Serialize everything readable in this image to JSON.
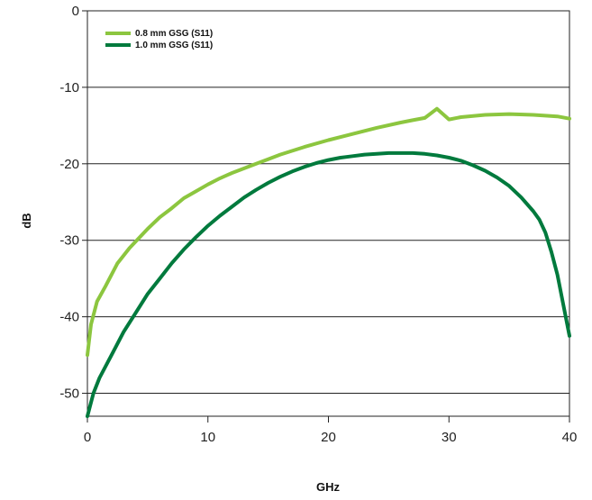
{
  "chart_data": {
    "type": "line",
    "title": "",
    "xlabel": "GHz",
    "ylabel": "dB",
    "xlim": [
      0,
      40
    ],
    "ylim": [
      -53,
      0
    ],
    "x_ticks": [
      "0",
      "10",
      "20",
      "30",
      "40"
    ],
    "y_ticks": [
      "0",
      "-10",
      "-20",
      "-30",
      "-40",
      "-50"
    ],
    "grid": "horizontal",
    "legend_position": "top-left",
    "series": [
      {
        "name": "0.8 mm GSG (S11)",
        "color": "#8cc63f",
        "points": [
          [
            0,
            -45
          ],
          [
            0.3,
            -41
          ],
          [
            0.8,
            -38
          ],
          [
            1.5,
            -36
          ],
          [
            2.5,
            -33
          ],
          [
            3.5,
            -31
          ],
          [
            5,
            -28.5
          ],
          [
            6,
            -27
          ],
          [
            7,
            -25.8
          ],
          [
            8,
            -24.5
          ],
          [
            9,
            -23.6
          ],
          [
            10,
            -22.7
          ],
          [
            11,
            -21.9
          ],
          [
            12,
            -21.2
          ],
          [
            13,
            -20.6
          ],
          [
            14,
            -20
          ],
          [
            15,
            -19.4
          ],
          [
            16,
            -18.8
          ],
          [
            18,
            -17.8
          ],
          [
            20,
            -16.9
          ],
          [
            22,
            -16.1
          ],
          [
            24,
            -15.3
          ],
          [
            26,
            -14.6
          ],
          [
            27,
            -14.3
          ],
          [
            28,
            -14
          ],
          [
            29,
            -12.8
          ],
          [
            30,
            -14.2
          ],
          [
            31,
            -13.9
          ],
          [
            33,
            -13.6
          ],
          [
            35,
            -13.5
          ],
          [
            37,
            -13.6
          ],
          [
            39,
            -13.8
          ],
          [
            40,
            -14.1
          ]
        ]
      },
      {
        "name": "1.0 mm GSG (S11)",
        "color": "#007a3d",
        "points": [
          [
            0,
            -53
          ],
          [
            0.5,
            -50
          ],
          [
            1,
            -48
          ],
          [
            2,
            -45
          ],
          [
            3,
            -42
          ],
          [
            4,
            -39.5
          ],
          [
            5,
            -37
          ],
          [
            6,
            -35
          ],
          [
            7,
            -33
          ],
          [
            8,
            -31.2
          ],
          [
            9,
            -29.6
          ],
          [
            10,
            -28.1
          ],
          [
            11,
            -26.8
          ],
          [
            12,
            -25.6
          ],
          [
            13,
            -24.4
          ],
          [
            14,
            -23.4
          ],
          [
            15,
            -22.5
          ],
          [
            16,
            -21.7
          ],
          [
            17,
            -21
          ],
          [
            18,
            -20.4
          ],
          [
            19,
            -19.9
          ],
          [
            20,
            -19.5
          ],
          [
            21,
            -19.2
          ],
          [
            22,
            -19
          ],
          [
            23,
            -18.8
          ],
          [
            24,
            -18.7
          ],
          [
            25,
            -18.6
          ],
          [
            26,
            -18.6
          ],
          [
            27,
            -18.6
          ],
          [
            28,
            -18.7
          ],
          [
            29,
            -18.9
          ],
          [
            30,
            -19.2
          ],
          [
            31,
            -19.6
          ],
          [
            32,
            -20.2
          ],
          [
            33,
            -20.9
          ],
          [
            34,
            -21.8
          ],
          [
            35,
            -22.9
          ],
          [
            36,
            -24.4
          ],
          [
            37,
            -26.2
          ],
          [
            37.5,
            -27.3
          ],
          [
            38,
            -29
          ],
          [
            38.5,
            -31.5
          ],
          [
            39,
            -34.5
          ],
          [
            39.5,
            -38.5
          ],
          [
            40,
            -42.5
          ]
        ]
      }
    ]
  }
}
